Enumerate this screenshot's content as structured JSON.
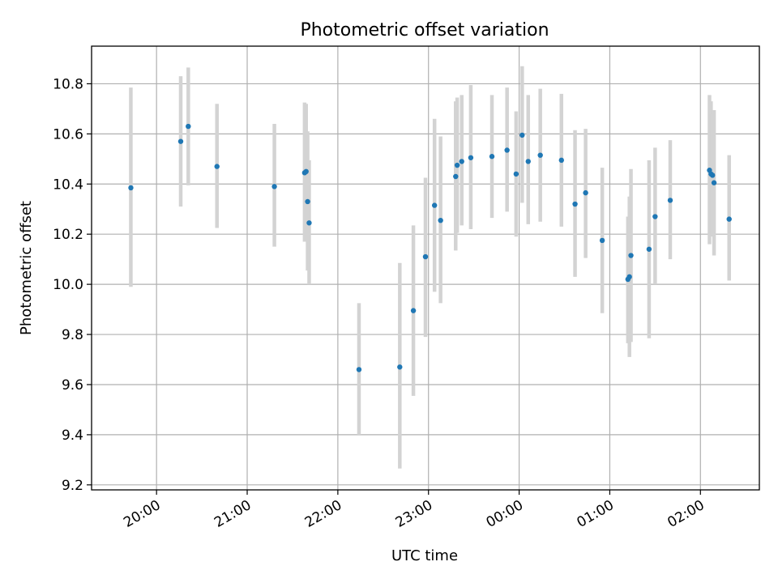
{
  "chart_data": {
    "type": "scatter",
    "title": "Photometric offset variation",
    "xlabel": "UTC time",
    "ylabel": "Photometric offset",
    "x_ticks": [
      "20:00",
      "21:00",
      "22:00",
      "23:00",
      "00:00",
      "01:00",
      "02:00"
    ],
    "y_ticks": [
      9.2,
      9.4,
      9.6,
      9.8,
      10.0,
      10.2,
      10.4,
      10.6,
      10.8
    ],
    "xlim": [
      "19:17",
      "02:39"
    ],
    "ylim": [
      9.18,
      10.95
    ],
    "grid": true,
    "colors": {
      "point": "#1f77b4",
      "errorbar": "#d3d3d3"
    },
    "series": [
      {
        "points": [
          {
            "x": "19:43",
            "y": 10.385,
            "yerr_low": 9.99,
            "yerr_high": 10.785
          },
          {
            "x": "20:16",
            "y": 10.57,
            "yerr_low": 10.31,
            "yerr_high": 10.83
          },
          {
            "x": "20:21",
            "y": 10.63,
            "yerr_low": 10.395,
            "yerr_high": 10.865
          },
          {
            "x": "20:40",
            "y": 10.47,
            "yerr_low": 10.225,
            "yerr_high": 10.72
          },
          {
            "x": "21:18",
            "y": 10.39,
            "yerr_low": 10.15,
            "yerr_high": 10.64
          },
          {
            "x": "21:38",
            "y": 10.445,
            "yerr_low": 10.17,
            "yerr_high": 10.725
          },
          {
            "x": "21:39",
            "y": 10.45,
            "yerr_low": 10.25,
            "yerr_high": 10.72
          },
          {
            "x": "21:40",
            "y": 10.33,
            "yerr_low": 10.055,
            "yerr_high": 10.61
          },
          {
            "x": "21:41",
            "y": 10.245,
            "yerr_low": 10.0,
            "yerr_high": 10.495
          },
          {
            "x": "22:14",
            "y": 9.66,
            "yerr_low": 9.4,
            "yerr_high": 9.925
          },
          {
            "x": "22:41",
            "y": 9.67,
            "yerr_low": 9.265,
            "yerr_high": 10.085
          },
          {
            "x": "22:50",
            "y": 9.895,
            "yerr_low": 9.555,
            "yerr_high": 10.235
          },
          {
            "x": "22:58",
            "y": 10.11,
            "yerr_low": 9.79,
            "yerr_high": 10.425
          },
          {
            "x": "23:04",
            "y": 10.315,
            "yerr_low": 9.97,
            "yerr_high": 10.66
          },
          {
            "x": "23:08",
            "y": 10.255,
            "yerr_low": 9.925,
            "yerr_high": 10.59
          },
          {
            "x": "23:18",
            "y": 10.43,
            "yerr_low": 10.135,
            "yerr_high": 10.73
          },
          {
            "x": "23:19",
            "y": 10.475,
            "yerr_low": 10.205,
            "yerr_high": 10.745
          },
          {
            "x": "23:22",
            "y": 10.49,
            "yerr_low": 10.235,
            "yerr_high": 10.755
          },
          {
            "x": "23:28",
            "y": 10.505,
            "yerr_low": 10.22,
            "yerr_high": 10.795
          },
          {
            "x": "23:42",
            "y": 10.51,
            "yerr_low": 10.265,
            "yerr_high": 10.755
          },
          {
            "x": "23:52",
            "y": 10.535,
            "yerr_low": 10.29,
            "yerr_high": 10.785
          },
          {
            "x": "23:58",
            "y": 10.44,
            "yerr_low": 10.19,
            "yerr_high": 10.69
          },
          {
            "x": "00:02",
            "y": 10.595,
            "yerr_low": 10.325,
            "yerr_high": 10.87
          },
          {
            "x": "00:06",
            "y": 10.49,
            "yerr_low": 10.24,
            "yerr_high": 10.755
          },
          {
            "x": "00:14",
            "y": 10.515,
            "yerr_low": 10.25,
            "yerr_high": 10.78
          },
          {
            "x": "00:28",
            "y": 10.495,
            "yerr_low": 10.23,
            "yerr_high": 10.76
          },
          {
            "x": "00:37",
            "y": 10.32,
            "yerr_low": 10.03,
            "yerr_high": 10.615
          },
          {
            "x": "00:44",
            "y": 10.365,
            "yerr_low": 10.105,
            "yerr_high": 10.62
          },
          {
            "x": "00:55",
            "y": 10.175,
            "yerr_low": 9.885,
            "yerr_high": 10.465
          },
          {
            "x": "01:12",
            "y": 10.02,
            "yerr_low": 9.765,
            "yerr_high": 10.27
          },
          {
            "x": "01:13",
            "y": 10.03,
            "yerr_low": 9.71,
            "yerr_high": 10.35
          },
          {
            "x": "01:14",
            "y": 10.115,
            "yerr_low": 9.77,
            "yerr_high": 10.46
          },
          {
            "x": "01:26",
            "y": 10.14,
            "yerr_low": 9.785,
            "yerr_high": 10.495
          },
          {
            "x": "01:30",
            "y": 10.27,
            "yerr_low": 10.0,
            "yerr_high": 10.545
          },
          {
            "x": "01:40",
            "y": 10.335,
            "yerr_low": 10.1,
            "yerr_high": 10.575
          },
          {
            "x": "02:06",
            "y": 10.455,
            "yerr_low": 10.16,
            "yerr_high": 10.755
          },
          {
            "x": "02:07",
            "y": 10.44,
            "yerr_low": 10.2,
            "yerr_high": 10.73
          },
          {
            "x": "02:08",
            "y": 10.435,
            "yerr_low": 10.19,
            "yerr_high": 10.68
          },
          {
            "x": "02:09",
            "y": 10.405,
            "yerr_low": 10.115,
            "yerr_high": 10.695
          },
          {
            "x": "02:19",
            "y": 10.26,
            "yerr_low": 10.015,
            "yerr_high": 10.515
          }
        ]
      }
    ]
  }
}
